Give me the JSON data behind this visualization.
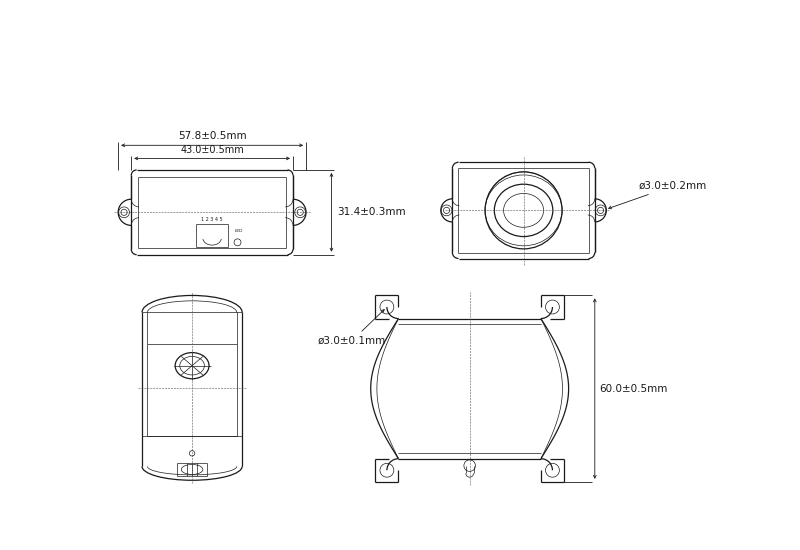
{
  "background_color": "#ffffff",
  "line_color": "#1a1a1a",
  "annotations": {
    "dim1": "57.8±0.5mm",
    "dim2": "43.0±0.5mm",
    "dim3": "31.4±0.3mm",
    "dim4": "ø3.0±0.2mm",
    "dim5": "ø3.0±0.1mm",
    "dim6": "60.0±0.5mm"
  },
  "font_size_dim": 7.5
}
